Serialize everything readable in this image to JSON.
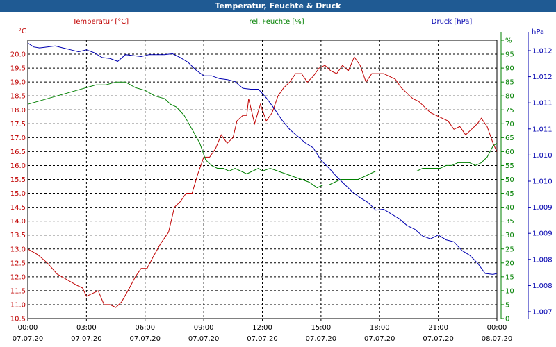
{
  "window": {
    "title": "Temperatur, Feuchte & Druck"
  },
  "colors": {
    "temperature": "#c00000",
    "humidity": "#008000",
    "pressure": "#0000b0",
    "grid": "#000000"
  },
  "chart_data": {
    "type": "line",
    "title": "Temperatur, Feuchte & Druck",
    "grid": true,
    "x_ticks": [
      {
        "time": "00:00",
        "date": "07.07.20",
        "x": 0
      },
      {
        "time": "03:00",
        "date": "07.07.20",
        "x": 3
      },
      {
        "time": "06:00",
        "date": "07.07.20",
        "x": 6
      },
      {
        "time": "09:00",
        "date": "07.07.20",
        "x": 9
      },
      {
        "time": "12:00",
        "date": "07.07.20",
        "x": 12
      },
      {
        "time": "15:00",
        "date": "07.07.20",
        "x": 15
      },
      {
        "time": "18:00",
        "date": "07.07.20",
        "x": 18
      },
      {
        "time": "21:00",
        "date": "07.07.20",
        "x": 21
      },
      {
        "time": "00:00",
        "date": "08.07.20",
        "x": 24
      }
    ],
    "xlim": [
      0,
      24
    ],
    "axes": {
      "temperature": {
        "header": "Temperatur [°C]",
        "unit": "°C",
        "ylim": [
          10.5,
          20.5
        ],
        "ticks": [
          "10.5",
          "11.0",
          "11.5",
          "12.0",
          "12.5",
          "13.0",
          "13.5",
          "14.0",
          "14.5",
          "15.0",
          "15.5",
          "16.0",
          "16.5",
          "17.0",
          "17.5",
          "18.0",
          "18.5",
          "19.0",
          "19.5",
          "20.0"
        ]
      },
      "humidity": {
        "header": "rel. Feuchte [%]",
        "unit": "%",
        "ylim": [
          0,
          100
        ],
        "ticks": [
          "0",
          "5",
          "10",
          "15",
          "20",
          "25",
          "30",
          "35",
          "40",
          "45",
          "50",
          "55",
          "60",
          "65",
          "70",
          "75",
          "80",
          "85",
          "90",
          "95",
          "%"
        ]
      },
      "pressure": {
        "header": "Druck [hPa]",
        "unit": "hPa",
        "ylim": [
          1006.8,
          1012.6
        ],
        "ticks": [
          "1.007",
          "1.008",
          "1.008",
          "1.009",
          "1.009",
          "1.010",
          "1.010",
          "1.011",
          "1.011",
          "1.012",
          "1.012"
        ]
      }
    },
    "series": [
      {
        "name": "Temperatur [°C]",
        "axis": "temperature",
        "color": "#c00000",
        "points": [
          [
            0,
            13.0
          ],
          [
            0.5,
            12.8
          ],
          [
            1,
            12.5
          ],
          [
            1.5,
            12.1
          ],
          [
            2,
            11.9
          ],
          [
            2.5,
            11.7
          ],
          [
            2.8,
            11.6
          ],
          [
            3,
            11.3
          ],
          [
            3.3,
            11.4
          ],
          [
            3.6,
            11.5
          ],
          [
            3.9,
            11.0
          ],
          [
            4.2,
            11.0
          ],
          [
            4.5,
            10.9
          ],
          [
            4.8,
            11.1
          ],
          [
            5.2,
            11.6
          ],
          [
            5.5,
            12.0
          ],
          [
            5.8,
            12.3
          ],
          [
            6.1,
            12.3
          ],
          [
            6.4,
            12.7
          ],
          [
            6.8,
            13.2
          ],
          [
            7.2,
            13.6
          ],
          [
            7.5,
            14.5
          ],
          [
            7.8,
            14.7
          ],
          [
            8.1,
            15.0
          ],
          [
            8.4,
            15.0
          ],
          [
            8.7,
            15.7
          ],
          [
            9,
            16.3
          ],
          [
            9.3,
            16.3
          ],
          [
            9.6,
            16.6
          ],
          [
            9.9,
            17.1
          ],
          [
            10.2,
            16.8
          ],
          [
            10.5,
            17.0
          ],
          [
            10.7,
            17.6
          ],
          [
            11,
            17.8
          ],
          [
            11.2,
            17.8
          ],
          [
            11.3,
            18.4
          ],
          [
            11.6,
            17.5
          ],
          [
            11.9,
            18.2
          ],
          [
            12.2,
            17.6
          ],
          [
            12.5,
            17.9
          ],
          [
            12.8,
            18.5
          ],
          [
            13.1,
            18.8
          ],
          [
            13.4,
            19.0
          ],
          [
            13.7,
            19.3
          ],
          [
            14.0,
            19.3
          ],
          [
            14.3,
            19.0
          ],
          [
            14.6,
            19.2
          ],
          [
            14.9,
            19.5
          ],
          [
            15.2,
            19.6
          ],
          [
            15.5,
            19.4
          ],
          [
            15.8,
            19.3
          ],
          [
            16.1,
            19.6
          ],
          [
            16.4,
            19.4
          ],
          [
            16.7,
            19.9
          ],
          [
            17.0,
            19.6
          ],
          [
            17.3,
            19.0
          ],
          [
            17.6,
            19.3
          ],
          [
            17.9,
            19.3
          ],
          [
            18.2,
            19.3
          ],
          [
            18.5,
            19.2
          ],
          [
            18.8,
            19.1
          ],
          [
            19.1,
            18.8
          ],
          [
            19.4,
            18.6
          ],
          [
            19.7,
            18.4
          ],
          [
            20.0,
            18.3
          ],
          [
            20.3,
            18.1
          ],
          [
            20.6,
            17.9
          ],
          [
            20.9,
            17.8
          ],
          [
            21.2,
            17.7
          ],
          [
            21.5,
            17.6
          ],
          [
            21.8,
            17.3
          ],
          [
            22.1,
            17.4
          ],
          [
            22.4,
            17.1
          ],
          [
            22.7,
            17.3
          ],
          [
            23.0,
            17.5
          ],
          [
            23.2,
            17.7
          ],
          [
            23.5,
            17.4
          ],
          [
            23.8,
            16.8
          ],
          [
            24,
            16.5
          ]
        ]
      },
      {
        "name": "rel. Feuchte [%]",
        "axis": "humidity",
        "color": "#008000",
        "points": [
          [
            0,
            77
          ],
          [
            0.5,
            78
          ],
          [
            1,
            79
          ],
          [
            1.5,
            80
          ],
          [
            2,
            81
          ],
          [
            2.5,
            82
          ],
          [
            3,
            83
          ],
          [
            3.5,
            84
          ],
          [
            4,
            84
          ],
          [
            4.5,
            85
          ],
          [
            5,
            85
          ],
          [
            5.5,
            83
          ],
          [
            6,
            82
          ],
          [
            6.5,
            80
          ],
          [
            7,
            79
          ],
          [
            7.3,
            77
          ],
          [
            7.6,
            76
          ],
          [
            8,
            73
          ],
          [
            8.4,
            68
          ],
          [
            8.8,
            63
          ],
          [
            9.1,
            57
          ],
          [
            9.4,
            55
          ],
          [
            9.7,
            54
          ],
          [
            10,
            54
          ],
          [
            10.3,
            53
          ],
          [
            10.6,
            54
          ],
          [
            10.9,
            53
          ],
          [
            11.2,
            52
          ],
          [
            11.5,
            53
          ],
          [
            11.8,
            54
          ],
          [
            12,
            53
          ],
          [
            12.4,
            54
          ],
          [
            12.8,
            53
          ],
          [
            13.2,
            52
          ],
          [
            13.6,
            51
          ],
          [
            14,
            50
          ],
          [
            14.4,
            49
          ],
          [
            14.8,
            47
          ],
          [
            15.1,
            48
          ],
          [
            15.4,
            48
          ],
          [
            15.7,
            49
          ],
          [
            16,
            50
          ],
          [
            16.3,
            50
          ],
          [
            16.6,
            50
          ],
          [
            16.9,
            50
          ],
          [
            17.2,
            51
          ],
          [
            17.5,
            52
          ],
          [
            17.8,
            53
          ],
          [
            18.1,
            53
          ],
          [
            18.4,
            53
          ],
          [
            18.7,
            53
          ],
          [
            19,
            53
          ],
          [
            19.3,
            53
          ],
          [
            19.6,
            53
          ],
          [
            19.9,
            53
          ],
          [
            20.2,
            54
          ],
          [
            20.5,
            54
          ],
          [
            20.8,
            54
          ],
          [
            21.1,
            54
          ],
          [
            21.4,
            55
          ],
          [
            21.7,
            55
          ],
          [
            22,
            56
          ],
          [
            22.3,
            56
          ],
          [
            22.6,
            56
          ],
          [
            22.9,
            55
          ],
          [
            23.2,
            56
          ],
          [
            23.5,
            58
          ],
          [
            23.8,
            62
          ],
          [
            24,
            63
          ]
        ]
      },
      {
        "name": "Druck [hPa]",
        "axis": "pressure",
        "color": "#0000b0",
        "points": [
          [
            0,
            1012.54
          ],
          [
            0.3,
            1012.46
          ],
          [
            0.6,
            1012.44
          ],
          [
            1,
            1012.46
          ],
          [
            1.4,
            1012.48
          ],
          [
            1.8,
            1012.44
          ],
          [
            2.2,
            1012.4
          ],
          [
            2.6,
            1012.36
          ],
          [
            3,
            1012.4
          ],
          [
            3.4,
            1012.34
          ],
          [
            3.8,
            1012.24
          ],
          [
            4.2,
            1012.22
          ],
          [
            4.6,
            1012.16
          ],
          [
            5,
            1012.3
          ],
          [
            5.4,
            1012.28
          ],
          [
            5.8,
            1012.26
          ],
          [
            6.2,
            1012.3
          ],
          [
            6.6,
            1012.3
          ],
          [
            7,
            1012.3
          ],
          [
            7.4,
            1012.32
          ],
          [
            7.8,
            1012.24
          ],
          [
            8.2,
            1012.14
          ],
          [
            8.6,
            1011.98
          ],
          [
            9,
            1011.86
          ],
          [
            9.4,
            1011.86
          ],
          [
            9.8,
            1011.8
          ],
          [
            10.2,
            1011.78
          ],
          [
            10.6,
            1011.74
          ],
          [
            11,
            1011.6
          ],
          [
            11.4,
            1011.58
          ],
          [
            11.8,
            1011.58
          ],
          [
            12.2,
            1011.4
          ],
          [
            12.6,
            1011.18
          ],
          [
            13,
            1010.94
          ],
          [
            13.4,
            1010.74
          ],
          [
            13.8,
            1010.6
          ],
          [
            14.2,
            1010.46
          ],
          [
            14.6,
            1010.36
          ],
          [
            15,
            1010.1
          ],
          [
            15.4,
            1009.94
          ],
          [
            15.8,
            1009.76
          ],
          [
            16.2,
            1009.6
          ],
          [
            16.6,
            1009.44
          ],
          [
            17,
            1009.32
          ],
          [
            17.4,
            1009.22
          ],
          [
            17.8,
            1009.06
          ],
          [
            18.2,
            1009.08
          ],
          [
            18.6,
            1008.98
          ],
          [
            19,
            1008.88
          ],
          [
            19.4,
            1008.74
          ],
          [
            19.8,
            1008.66
          ],
          [
            20.2,
            1008.52
          ],
          [
            20.6,
            1008.46
          ],
          [
            21,
            1008.54
          ],
          [
            21.4,
            1008.44
          ],
          [
            21.8,
            1008.4
          ],
          [
            22.2,
            1008.22
          ],
          [
            22.6,
            1008.12
          ],
          [
            23,
            1007.96
          ],
          [
            23.4,
            1007.74
          ],
          [
            23.8,
            1007.72
          ],
          [
            24,
            1007.74
          ]
        ]
      }
    ]
  }
}
